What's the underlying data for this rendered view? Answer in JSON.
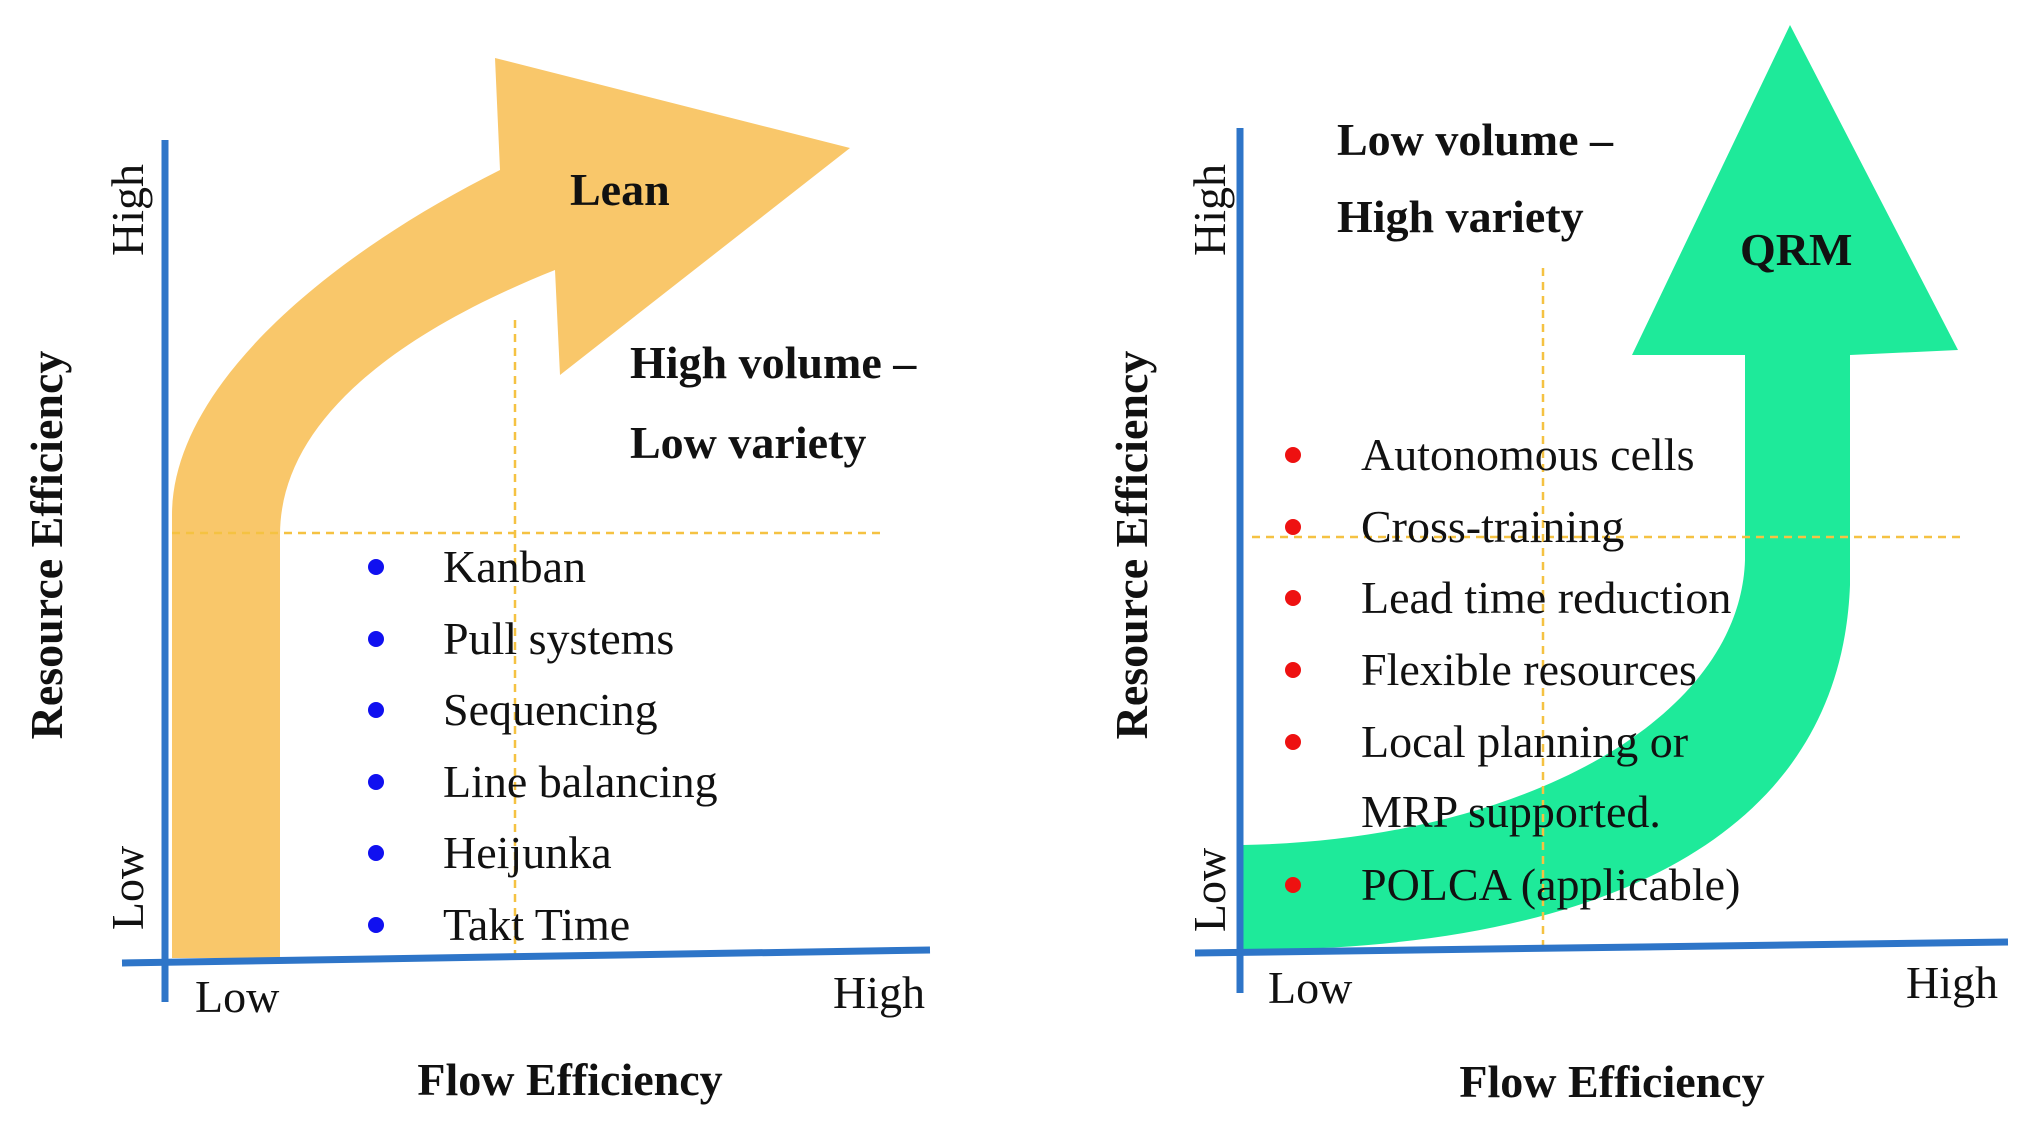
{
  "left_panel": {
    "arrow_label": "Lean",
    "arrow_color": "#F9C76A",
    "region_title": [
      "High volume –",
      "Low variety"
    ],
    "x_axis_title": "Flow Efficiency",
    "y_axis_title": "Resource Efficiency",
    "x_low": "Low",
    "x_high": "High",
    "y_low": "Low",
    "y_high": "High",
    "bullet_color": "#1010F0",
    "items": [
      "Kanban",
      "Pull systems",
      "Sequencing",
      "Line balancing",
      "Heijunka",
      "Takt Time"
    ]
  },
  "right_panel": {
    "arrow_label": "QRM",
    "arrow_color": "#1EEA9A",
    "region_title": [
      "Low volume –",
      "High variety"
    ],
    "x_axis_title": "Flow Efficiency",
    "y_axis_title": "Resource Efficiency",
    "x_low": "Low",
    "x_high": "High",
    "y_low": "Low",
    "y_high": "High",
    "bullet_color": "#EE1111",
    "items": [
      "Autonomous cells",
      "Cross-training",
      "Lead time reduction",
      "Flexible resources",
      "Local planning or",
      "MRP supported.",
      "POLCA (applicable)"
    ]
  },
  "colors": {
    "axis": "#2E75C8",
    "guide": "#F5C242",
    "text": "#111111"
  }
}
